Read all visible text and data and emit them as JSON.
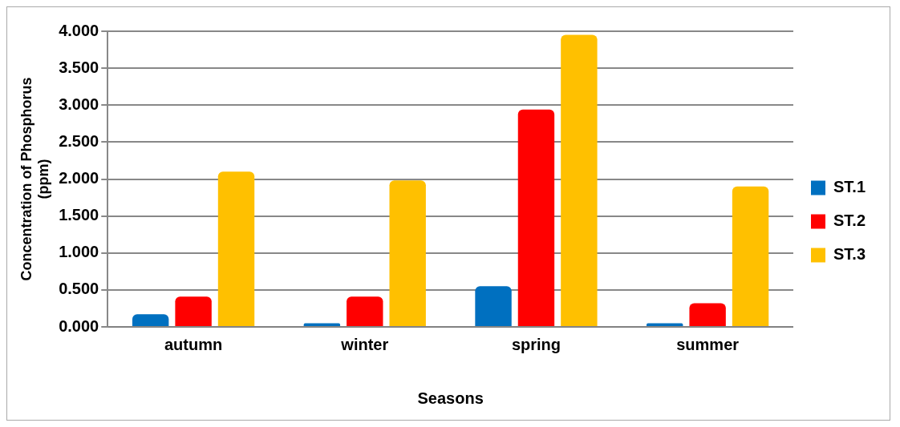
{
  "chart_data": {
    "type": "bar",
    "xlabel": "Seasons",
    "ylabel": "Concentration of Phosphorus (ppm)",
    "categories": [
      "autumn",
      "winter",
      "spring",
      "summer"
    ],
    "series": [
      {
        "name": "ST.1",
        "color": "#0070c0",
        "values": [
          0.17,
          0.05,
          0.55,
          0.05
        ]
      },
      {
        "name": "ST.2",
        "color": "#ff0000",
        "values": [
          0.41,
          0.41,
          2.94,
          0.32
        ]
      },
      {
        "name": "ST.3",
        "color": "#ffc000",
        "values": [
          2.1,
          1.98,
          3.95,
          1.9
        ]
      }
    ],
    "ylim": [
      0,
      4
    ],
    "yticks": [
      {
        "value": 0,
        "label": "0.000"
      },
      {
        "value": 0.5,
        "label": "0.500"
      },
      {
        "value": 1,
        "label": "1.000"
      },
      {
        "value": 1.5,
        "label": "1.500"
      },
      {
        "value": 2,
        "label": "2.000"
      },
      {
        "value": 2.5,
        "label": "2.500"
      },
      {
        "value": 3,
        "label": "3.000"
      },
      {
        "value": 3.5,
        "label": "3.500"
      },
      {
        "value": 4,
        "label": "4.000"
      }
    ],
    "grid": "y",
    "legend": "right"
  }
}
